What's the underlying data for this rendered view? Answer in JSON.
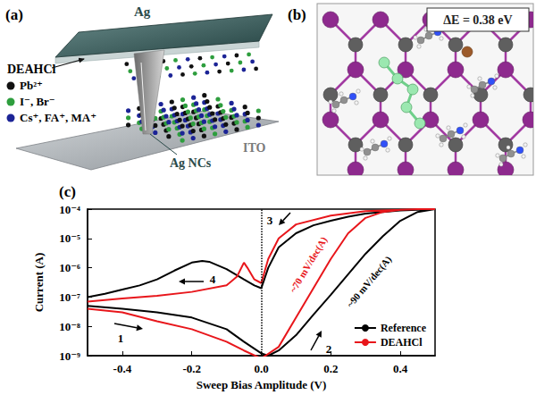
{
  "panels": {
    "a": {
      "label": "(a)",
      "top_electrode": "Ag",
      "interlayer": "DEAHCl",
      "bottom_electrode": "ITO",
      "filament": "Ag NCs",
      "key": [
        {
          "label": "Pb²⁺",
          "color": "#111111"
        },
        {
          "label": "I⁻, Br⁻",
          "color": "#2e9e3e"
        },
        {
          "label": "Cs⁺, FA⁺, MA⁺",
          "color": "#1c2496"
        }
      ]
    },
    "b": {
      "label": "(b)",
      "energy_label": "ΔE = 0.38 eV"
    }
  },
  "chart_data": {
    "type": "line",
    "panel_label": "(c)",
    "x_label": "Sweep Bias Amplitude (V)",
    "y_label": "Current (A)",
    "xlim": [
      -0.5,
      0.5
    ],
    "xticks": [
      -0.4,
      -0.2,
      {
        "value": 0,
        "label": "0.0"
      },
      0.2,
      0.4
    ],
    "ylim": [
      1e-09,
      0.0001
    ],
    "yticks": [
      {
        "value": 1e-09,
        "label": "10⁻⁹"
      },
      {
        "value": 1e-08,
        "label": "10⁻⁸"
      },
      {
        "value": 1e-07,
        "label": "10⁻⁷"
      },
      {
        "value": 1e-06,
        "label": "10⁻⁶"
      },
      {
        "value": 1e-05,
        "label": "10⁻⁵"
      },
      {
        "value": 0.0001,
        "label": "10⁻⁴"
      }
    ],
    "log": "y",
    "grid": false,
    "legend": "lower right",
    "vline": 0,
    "annotations": [
      {
        "text": "1",
        "color": "#000000"
      },
      {
        "text": "2",
        "color": "#000000"
      },
      {
        "text": "3",
        "color": "#000000"
      },
      {
        "text": "4",
        "color": "#000000"
      },
      {
        "text": "~70 mV/dec(A)",
        "color": "#e8161b"
      },
      {
        "text": "~90 mV/dec(A)",
        "color": "#000000"
      }
    ],
    "series": [
      {
        "name": "Reference",
        "color": "#000000",
        "x": [
          -0.5,
          -0.4,
          -0.3,
          -0.2,
          -0.1,
          -0.05,
          0,
          0.02,
          0.05,
          0.1,
          0.15,
          0.2,
          0.25,
          0.3,
          0.35,
          0.4,
          0.45,
          0.5,
          0.45,
          0.4,
          0.35,
          0.3,
          0.25,
          0.2,
          0.15,
          0.1,
          0.05,
          0.02,
          0,
          -0.02,
          -0.05,
          -0.1,
          -0.15,
          -0.17,
          -0.2,
          -0.25,
          -0.3,
          -0.35,
          -0.4,
          -0.45,
          -0.5
        ],
        "values": [
          5e-08,
          4e-08,
          3e-08,
          2e-08,
          8e-09,
          3e-09,
          1.2e-09,
          1e-09,
          1.5e-09,
          5e-09,
          2.5e-08,
          1.2e-07,
          6e-07,
          3e-06,
          1.2e-05,
          4e-05,
          8e-05,
          0.0001,
          9.5e-05,
          9e-05,
          8e-05,
          7e-05,
          5.5e-05,
          4e-05,
          2.8e-05,
          1.5e-05,
          5e-06,
          1e-06,
          2e-07,
          2.5e-07,
          4e-07,
          9e-07,
          1.6e-06,
          1.7e-06,
          1.5e-06,
          8e-07,
          4e-07,
          2.5e-07,
          1.8e-07,
          1.3e-07,
          1e-07
        ]
      },
      {
        "name": "DEAHCl",
        "color": "#e8161b",
        "x": [
          -0.5,
          -0.4,
          -0.3,
          -0.2,
          -0.1,
          -0.05,
          0,
          0.05,
          0.1,
          0.15,
          0.2,
          0.25,
          0.3,
          0.35,
          0.4,
          0.45,
          0.5,
          0.45,
          0.4,
          0.3,
          0.2,
          0.1,
          0.05,
          0.02,
          0,
          -0.02,
          -0.04,
          -0.05,
          -0.07,
          -0.1,
          -0.2,
          -0.3,
          -0.4,
          -0.5
        ],
        "values": [
          4e-08,
          3e-08,
          1.5e-08,
          8e-09,
          3e-09,
          1.5e-09,
          8e-10,
          2e-09,
          2e-08,
          2e-07,
          2e-06,
          1.5e-05,
          5e-05,
          8e-05,
          9.5e-05,
          0.0001,
          0.0001,
          0.0001,
          9.5e-05,
          8.5e-05,
          6e-05,
          3e-05,
          1e-05,
          2e-06,
          3e-07,
          4e-07,
          1e-06,
          1.5e-06,
          5e-07,
          2.5e-07,
          1.5e-07,
          1.1e-07,
          9e-08,
          7e-08
        ]
      }
    ]
  }
}
